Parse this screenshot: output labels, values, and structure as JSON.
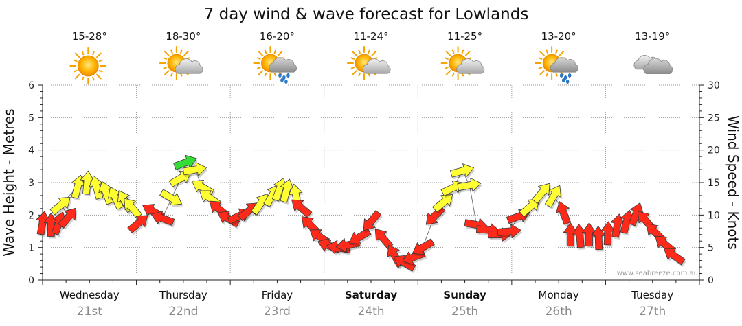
{
  "chart_data": {
    "type": "line",
    "title": "7 day wind & wave forecast for Lowlands",
    "ylabel_left": "Wave Height - Metres",
    "ylabel_right": "Wind Speed - Knots",
    "ylim_left": [
      0,
      6
    ],
    "ylim_right": [
      0,
      30
    ],
    "yticks_left": [
      "0",
      "1",
      "2",
      "3",
      "4",
      "5",
      "6"
    ],
    "yticks_right": [
      "0",
      "5",
      "10",
      "15",
      "20",
      "25",
      "30"
    ],
    "grid": true,
    "credit": "www.seabreeze.com.au",
    "days": [
      {
        "name": "Wednesday",
        "date": "21st",
        "bold": false,
        "temp": "15-28°",
        "icon": "sun-icon"
      },
      {
        "name": "Thursday",
        "date": "22nd",
        "bold": false,
        "temp": "18-30°",
        "icon": "partly-cloudy-icon"
      },
      {
        "name": "Friday",
        "date": "23rd",
        "bold": false,
        "temp": "16-20°",
        "icon": "showers-icon"
      },
      {
        "name": "Saturday",
        "date": "24th",
        "bold": true,
        "temp": "11-24°",
        "icon": "partly-cloudy-icon"
      },
      {
        "name": "Sunday",
        "date": "25th",
        "bold": true,
        "temp": "11-25°",
        "icon": "partly-cloudy-icon"
      },
      {
        "name": "Monday",
        "date": "26th",
        "bold": false,
        "temp": "13-20°",
        "icon": "showers-icon"
      },
      {
        "name": "Tuesday",
        "date": "27th",
        "bold": false,
        "temp": "13-19°",
        "icon": "cloud-icon"
      }
    ],
    "wind_colors": {
      "strong": "#ff2a1a",
      "moderate": "#ffff33",
      "light": "#33dd33"
    },
    "series": [
      {
        "name": "Wind Speed - Knots",
        "axis": "right",
        "unit_x": "day",
        "points": [
          {
            "x": 0.0,
            "speed": 8.8,
            "dir": 190,
            "color": "strong"
          },
          {
            "x": 0.18,
            "speed": 8.5,
            "dir": 180,
            "color": "strong"
          },
          {
            "x": 0.35,
            "speed": 8.8,
            "dir": 200,
            "color": "strong"
          },
          {
            "x": 0.55,
            "speed": 9.7,
            "dir": 220,
            "color": "strong"
          },
          {
            "x": 0.4,
            "speed": 11.6,
            "dir": 230,
            "color": "moderate"
          },
          {
            "x": 0.75,
            "speed": 14.4,
            "dir": 195,
            "color": "moderate"
          },
          {
            "x": 0.95,
            "speed": 15.0,
            "dir": 185,
            "color": "moderate"
          },
          {
            "x": 1.15,
            "speed": 14.3,
            "dir": 165,
            "color": "moderate"
          },
          {
            "x": 1.35,
            "speed": 13.5,
            "dir": 160,
            "color": "moderate"
          },
          {
            "x": 1.55,
            "speed": 12.7,
            "dir": 155,
            "color": "moderate"
          },
          {
            "x": 1.75,
            "speed": 12.2,
            "dir": 150,
            "color": "moderate"
          },
          {
            "x": 1.9,
            "speed": 11.2,
            "dir": 140,
            "color": "moderate"
          },
          {
            "x": 2.05,
            "speed": 8.8,
            "dir": 230,
            "color": "strong"
          },
          {
            "x": 2.35,
            "speed": 10.6,
            "dir": 120,
            "color": "strong"
          },
          {
            "x": 2.55,
            "speed": 9.5,
            "dir": 110,
            "color": "strong"
          },
          {
            "x": 2.75,
            "speed": 12.6,
            "dir": 300,
            "color": "moderate"
          },
          {
            "x": 2.95,
            "speed": 15.7,
            "dir": 240,
            "color": "moderate"
          },
          {
            "x": 3.05,
            "speed": 18.1,
            "dir": 250,
            "color": "light"
          },
          {
            "x": 3.25,
            "speed": 17.0,
            "dir": 260,
            "color": "moderate"
          },
          {
            "x": 3.4,
            "speed": 14.3,
            "dir": 120,
            "color": "moderate"
          },
          {
            "x": 3.55,
            "speed": 12.7,
            "dir": 125,
            "color": "moderate"
          },
          {
            "x": 3.75,
            "speed": 11.0,
            "dir": 130,
            "color": "strong"
          },
          {
            "x": 3.95,
            "speed": 9.5,
            "dir": 120,
            "color": "strong"
          },
          {
            "x": 4.2,
            "speed": 9.9,
            "dir": 245,
            "color": "strong"
          },
          {
            "x": 4.4,
            "speed": 10.7,
            "dir": 230,
            "color": "strong"
          },
          {
            "x": 4.65,
            "speed": 11.8,
            "dir": 215,
            "color": "moderate"
          },
          {
            "x": 4.9,
            "speed": 13.1,
            "dir": 210,
            "color": "moderate"
          },
          {
            "x": 5.05,
            "speed": 14.0,
            "dir": 200,
            "color": "moderate"
          },
          {
            "x": 5.2,
            "speed": 13.8,
            "dir": 195,
            "color": "moderate"
          },
          {
            "x": 5.4,
            "speed": 13.0,
            "dir": 170,
            "color": "moderate"
          },
          {
            "x": 5.5,
            "speed": 11.2,
            "dir": 130,
            "color": "strong"
          },
          {
            "x": 5.7,
            "speed": 8.5,
            "dir": 135,
            "color": "strong"
          },
          {
            "x": 5.9,
            "speed": 6.7,
            "dir": 125,
            "color": "strong"
          },
          {
            "x": 6.1,
            "speed": 5.3,
            "dir": 110,
            "color": "strong"
          },
          {
            "x": 6.3,
            "speed": 5.0,
            "dir": 100,
            "color": "strong"
          },
          {
            "x": 6.5,
            "speed": 5.4,
            "dir": 80,
            "color": "strong"
          },
          {
            "x": 6.75,
            "speed": 6.6,
            "dir": 60,
            "color": "strong"
          },
          {
            "x": 7.0,
            "speed": 9.0,
            "dir": 40,
            "color": "strong"
          },
          {
            "x": 7.25,
            "speed": 6.5,
            "dir": 140,
            "color": "strong"
          },
          {
            "x": 7.5,
            "speed": 3.8,
            "dir": 150,
            "color": "strong"
          },
          {
            "x": 7.7,
            "speed": 2.7,
            "dir": 120,
            "color": "strong"
          },
          {
            "x": 7.9,
            "speed": 3.5,
            "dir": 70,
            "color": "strong"
          },
          {
            "x": 8.1,
            "speed": 5.0,
            "dir": 60,
            "color": "strong"
          },
          {
            "x": 8.35,
            "speed": 9.8,
            "dir": 45,
            "color": "strong"
          },
          {
            "x": 8.55,
            "speed": 12.0,
            "dir": 230,
            "color": "moderate"
          },
          {
            "x": 8.75,
            "speed": 14.2,
            "dir": 245,
            "color": "moderate"
          },
          {
            "x": 8.95,
            "speed": 16.8,
            "dir": 255,
            "color": "moderate"
          },
          {
            "x": 9.1,
            "speed": 14.6,
            "dir": 260,
            "color": "moderate"
          },
          {
            "x": 9.25,
            "speed": 8.5,
            "dir": 280,
            "color": "strong"
          },
          {
            "x": 9.5,
            "speed": 7.7,
            "dir": 275,
            "color": "strong"
          },
          {
            "x": 9.75,
            "speed": 7.0,
            "dir": 270,
            "color": "strong"
          },
          {
            "x": 9.95,
            "speed": 7.5,
            "dir": 265,
            "color": "strong"
          },
          {
            "x": 10.15,
            "speed": 9.8,
            "dir": 250,
            "color": "strong"
          },
          {
            "x": 10.4,
            "speed": 11.3,
            "dir": 230,
            "color": "moderate"
          },
          {
            "x": 10.65,
            "speed": 13.5,
            "dir": 220,
            "color": "moderate"
          },
          {
            "x": 10.9,
            "speed": 13.0,
            "dir": 210,
            "color": "moderate"
          },
          {
            "x": 11.1,
            "speed": 10.4,
            "dir": 160,
            "color": "strong"
          },
          {
            "x": 11.25,
            "speed": 7.0,
            "dir": 180,
            "color": "strong"
          },
          {
            "x": 11.45,
            "speed": 6.8,
            "dir": 175,
            "color": "strong"
          },
          {
            "x": 11.65,
            "speed": 7.0,
            "dir": 180,
            "color": "strong"
          },
          {
            "x": 11.85,
            "speed": 6.5,
            "dir": 178,
            "color": "strong"
          },
          {
            "x": 12.05,
            "speed": 7.2,
            "dir": 182,
            "color": "strong"
          },
          {
            "x": 12.25,
            "speed": 8.4,
            "dir": 190,
            "color": "strong"
          },
          {
            "x": 12.45,
            "speed": 9.0,
            "dir": 195,
            "color": "strong"
          },
          {
            "x": 12.65,
            "speed": 10.2,
            "dir": 200,
            "color": "strong"
          },
          {
            "x": 12.85,
            "speed": 9.2,
            "dir": 140,
            "color": "strong"
          },
          {
            "x": 13.05,
            "speed": 7.4,
            "dir": 135,
            "color": "strong"
          },
          {
            "x": 13.25,
            "speed": 5.6,
            "dir": 130,
            "color": "strong"
          },
          {
            "x": 13.45,
            "speed": 3.8,
            "dir": 125,
            "color": "strong"
          }
        ]
      }
    ]
  }
}
